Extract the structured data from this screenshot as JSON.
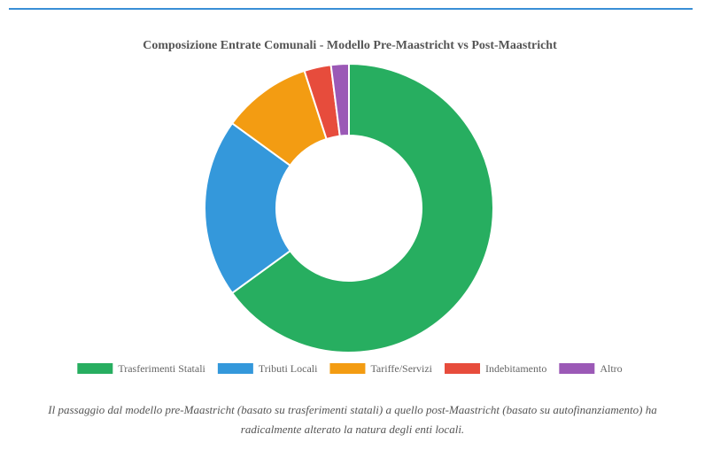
{
  "chart_data": {
    "type": "pie",
    "title": "Composizione Entrate Comunali - Modello Pre-Maastricht vs Post-Maastricht",
    "labels": [
      "Trasferimenti Statali",
      "Tributi Locali",
      "Tariffe/Servizi",
      "Indebitamento",
      "Altro"
    ],
    "values": [
      65,
      20,
      10,
      3,
      2
    ],
    "colors": [
      "#27ae60",
      "#3498db",
      "#f39c12",
      "#e74c3c",
      "#9b59b6"
    ],
    "donut": true,
    "legend_position": "bottom"
  },
  "caption": "Il passaggio dal modello pre-Maastricht (basato su trasferimenti statali) a quello post-Maastricht (basato su autofinanziamento) ha radicalmente alterato la natura degli enti locali."
}
